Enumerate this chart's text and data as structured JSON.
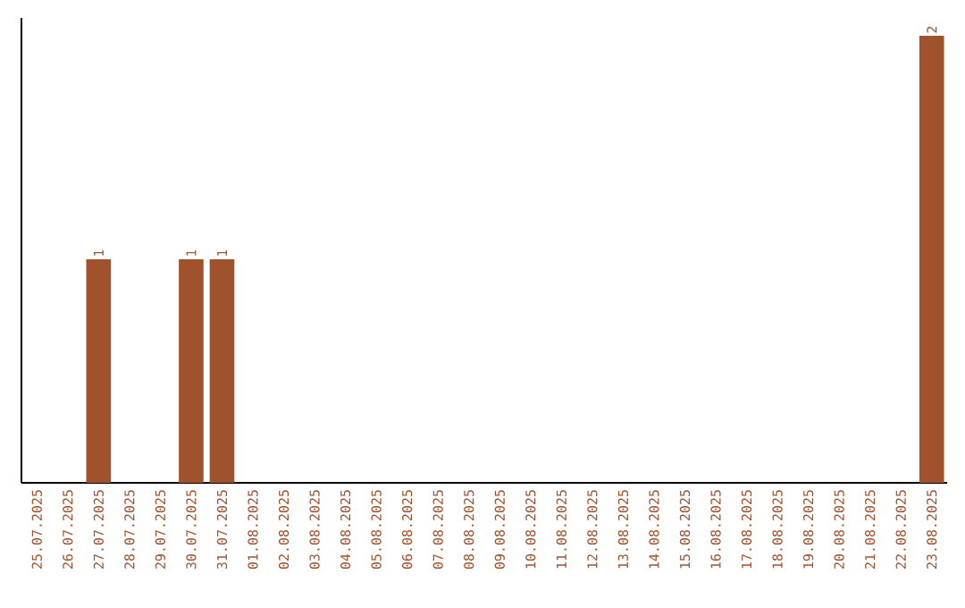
{
  "chart_data": {
    "type": "bar",
    "categories": [
      "25.07.2025",
      "26.07.2025",
      "27.07.2025",
      "28.07.2025",
      "29.07.2025",
      "30.07.2025",
      "31.07.2025",
      "01.08.2025",
      "02.08.2025",
      "03.08.2025",
      "04.08.2025",
      "05.08.2025",
      "06.08.2025",
      "07.08.2025",
      "08.08.2025",
      "09.08.2025",
      "10.08.2025",
      "11.08.2025",
      "12.08.2025",
      "13.08.2025",
      "14.08.2025",
      "15.08.2025",
      "16.08.2025",
      "17.08.2025",
      "18.08.2025",
      "19.08.2025",
      "20.08.2025",
      "21.08.2025",
      "22.08.2025",
      "23.08.2025"
    ],
    "values": [
      0,
      0,
      1,
      0,
      0,
      1,
      1,
      0,
      0,
      0,
      0,
      0,
      0,
      0,
      0,
      0,
      0,
      0,
      0,
      0,
      0,
      0,
      0,
      0,
      0,
      0,
      0,
      0,
      0,
      2
    ],
    "value_labels": [
      null,
      null,
      "1",
      null,
      null,
      "1",
      "1",
      null,
      null,
      null,
      null,
      null,
      null,
      null,
      null,
      null,
      null,
      null,
      null,
      null,
      null,
      null,
      null,
      null,
      null,
      null,
      null,
      null,
      null,
      "2"
    ],
    "color": "#a0522d"
  }
}
